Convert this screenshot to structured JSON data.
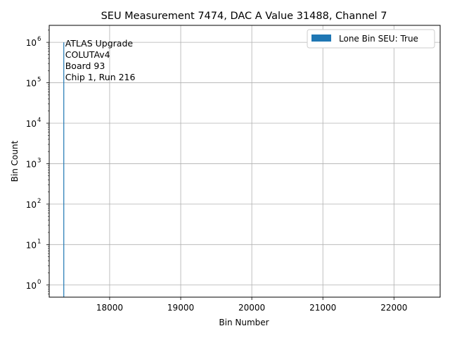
{
  "chart_data": {
    "type": "bar",
    "title": "SEU Measurement 7474, DAC A Value 31488, Channel 7",
    "xlabel": "Bin Number",
    "ylabel": "Bin Count",
    "xlim": [
      17150,
      22650
    ],
    "ylim_log10": [
      -0.3,
      6.42
    ],
    "y_scale": "log",
    "grid": true,
    "x_ticks": [
      {
        "value": 18000,
        "label": "18000"
      },
      {
        "value": 19000,
        "label": "19000"
      },
      {
        "value": 20000,
        "label": "20000"
      },
      {
        "value": 21000,
        "label": "21000"
      },
      {
        "value": 22000,
        "label": "22000"
      }
    ],
    "y_ticks": [
      {
        "exp": 0,
        "label": "10",
        "sup": "0"
      },
      {
        "exp": 1,
        "label": "10",
        "sup": "1"
      },
      {
        "exp": 2,
        "label": "10",
        "sup": "2"
      },
      {
        "exp": 3,
        "label": "10",
        "sup": "3"
      },
      {
        "exp": 4,
        "label": "10",
        "sup": "4"
      },
      {
        "exp": 5,
        "label": "10",
        "sup": "5"
      },
      {
        "exp": 6,
        "label": "10",
        "sup": "6"
      }
    ],
    "series": [
      {
        "name": "Lone Bin SEU: True",
        "color": "#1f77b4",
        "x": [
          17355
        ],
        "values": [
          1000000
        ]
      }
    ],
    "legend": {
      "placement": "top-right",
      "label": "Lone Bin SEU: True"
    },
    "annotation": [
      "ATLAS Upgrade",
      "COLUTAv4",
      " Board 93",
      "Chip 1, Run 216"
    ]
  }
}
